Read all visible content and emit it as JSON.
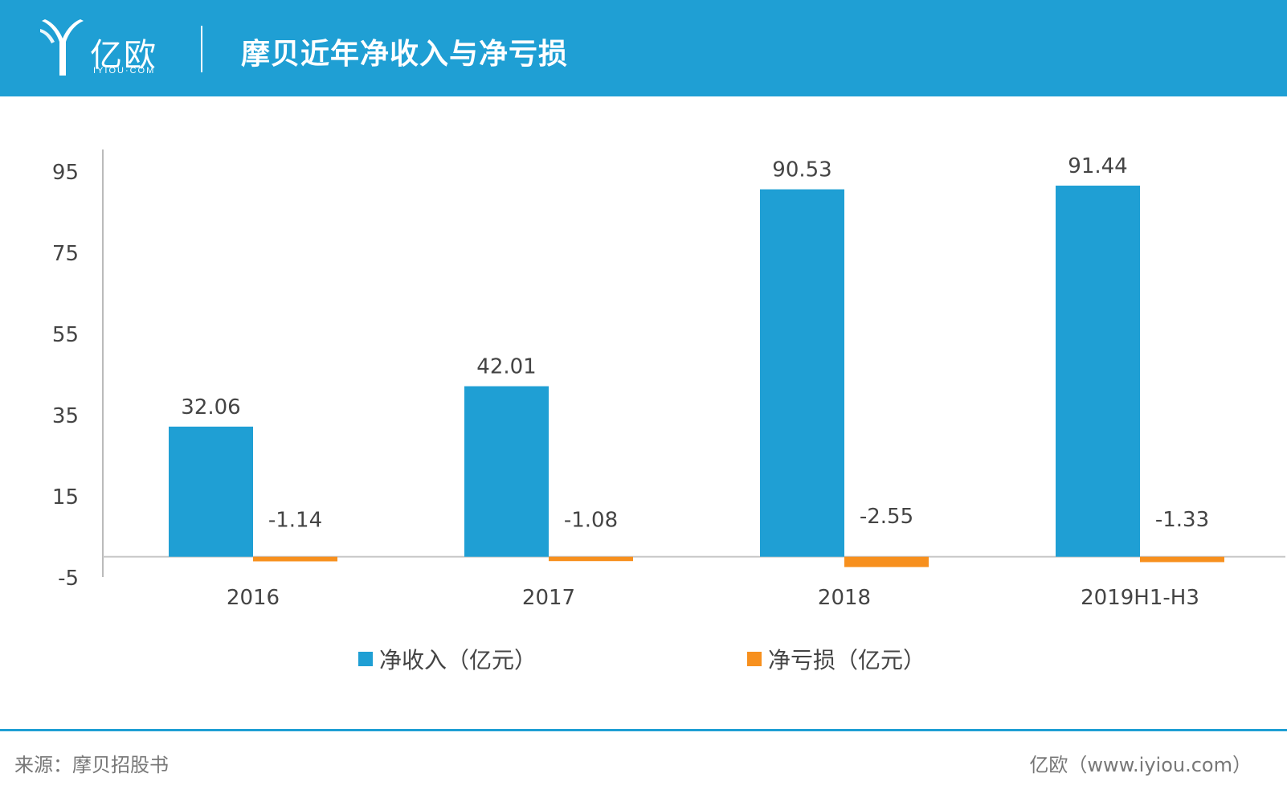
{
  "header": {
    "logo_text": "亿欧",
    "logo_sub": "IYIOU·COM",
    "title": "摩贝近年净收入与净亏损"
  },
  "chart_data": {
    "type": "bar",
    "title": "摩贝近年净收入与净亏损",
    "categories": [
      "2016",
      "2017",
      "2018",
      "2019H1-H3"
    ],
    "series": [
      {
        "name": "净收入（亿元）",
        "color": "#1f9fd4",
        "values": [
          32.06,
          42.01,
          90.53,
          91.44
        ],
        "labels": [
          "32.06",
          "42.01",
          "90.53",
          "91.44"
        ]
      },
      {
        "name": "净亏损（亿元）",
        "color": "#f7901e",
        "values": [
          -1.14,
          -1.08,
          -2.55,
          -1.33
        ],
        "labels": [
          "-1.14",
          "-1.08",
          "-2.55",
          "-1.33"
        ]
      }
    ],
    "yticks": [
      "95",
      "75",
      "55",
      "35",
      "15",
      "-5"
    ],
    "ylim": [
      -5,
      95
    ],
    "xlabel": "",
    "ylabel": "",
    "grid": false,
    "legend_position": "bottom"
  },
  "footer": {
    "source": "来源：摩贝招股书",
    "brand": "亿欧（www.iyiou.com）"
  }
}
